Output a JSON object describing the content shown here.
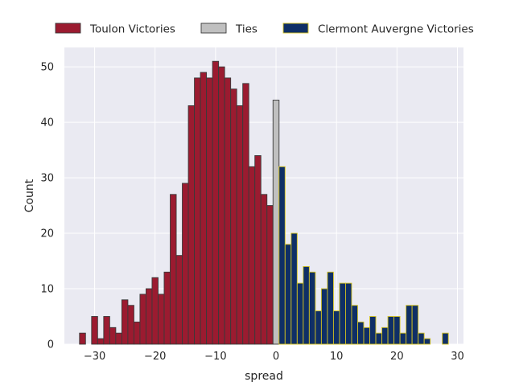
{
  "chart_data": {
    "type": "bar",
    "xlabel": "spread",
    "ylabel": "Count",
    "xlim": [
      -35,
      31
    ],
    "ylim": [
      0,
      53.5
    ],
    "bin_width": 1,
    "grid": true,
    "legend_position": "top",
    "x_ticks": [
      -30,
      -20,
      -10,
      0,
      10,
      20,
      30
    ],
    "x_tick_labels": [
      "−30",
      "−20",
      "−10",
      "0",
      "10",
      "20",
      "30"
    ],
    "y_ticks": [
      0,
      10,
      20,
      30,
      40,
      50
    ],
    "y_tick_labels": [
      "0",
      "10",
      "20",
      "30",
      "40",
      "50"
    ],
    "series": [
      {
        "name": "Toulon Victories",
        "color": "#9b1b30",
        "edge_color": "#3a3a3a",
        "x": [
          -32,
          -30,
          -29,
          -28,
          -27,
          -26,
          -25,
          -24,
          -23,
          -22,
          -21,
          -20,
          -19,
          -18,
          -17,
          -16,
          -15,
          -14,
          -13,
          -12,
          -11,
          -10,
          -9,
          -8,
          -7,
          -6,
          -5,
          -4,
          -3,
          -2,
          -1
        ],
        "values": [
          2,
          5,
          1,
          5,
          3,
          2,
          8,
          7,
          4,
          9,
          10,
          12,
          9,
          13,
          27,
          16,
          29,
          43,
          48,
          49,
          48,
          51,
          50,
          48,
          46,
          43,
          47,
          32,
          34,
          27,
          25
        ]
      },
      {
        "name": "Ties",
        "color": "#c0c0c0",
        "edge_color": "#3a3a3a",
        "x": [
          0
        ],
        "values": [
          44
        ]
      },
      {
        "name": "Clermont Auvergne Victories",
        "color": "#0f2f66",
        "edge_color": "#d4c21f",
        "x": [
          1,
          2,
          3,
          4,
          5,
          6,
          7,
          8,
          9,
          10,
          11,
          12,
          13,
          14,
          15,
          16,
          17,
          18,
          19,
          20,
          21,
          22,
          23,
          24,
          25,
          26,
          28
        ],
        "values": [
          32,
          18,
          20,
          11,
          14,
          13,
          6,
          10,
          13,
          6,
          11,
          11,
          7,
          4,
          3,
          5,
          2,
          3,
          5,
          5,
          2,
          7,
          7,
          2,
          1,
          0,
          2
        ]
      }
    ]
  },
  "style": {
    "plot_bg": "#eaeaf2",
    "grid_color": "#ffffff",
    "text_color": "#262626"
  }
}
